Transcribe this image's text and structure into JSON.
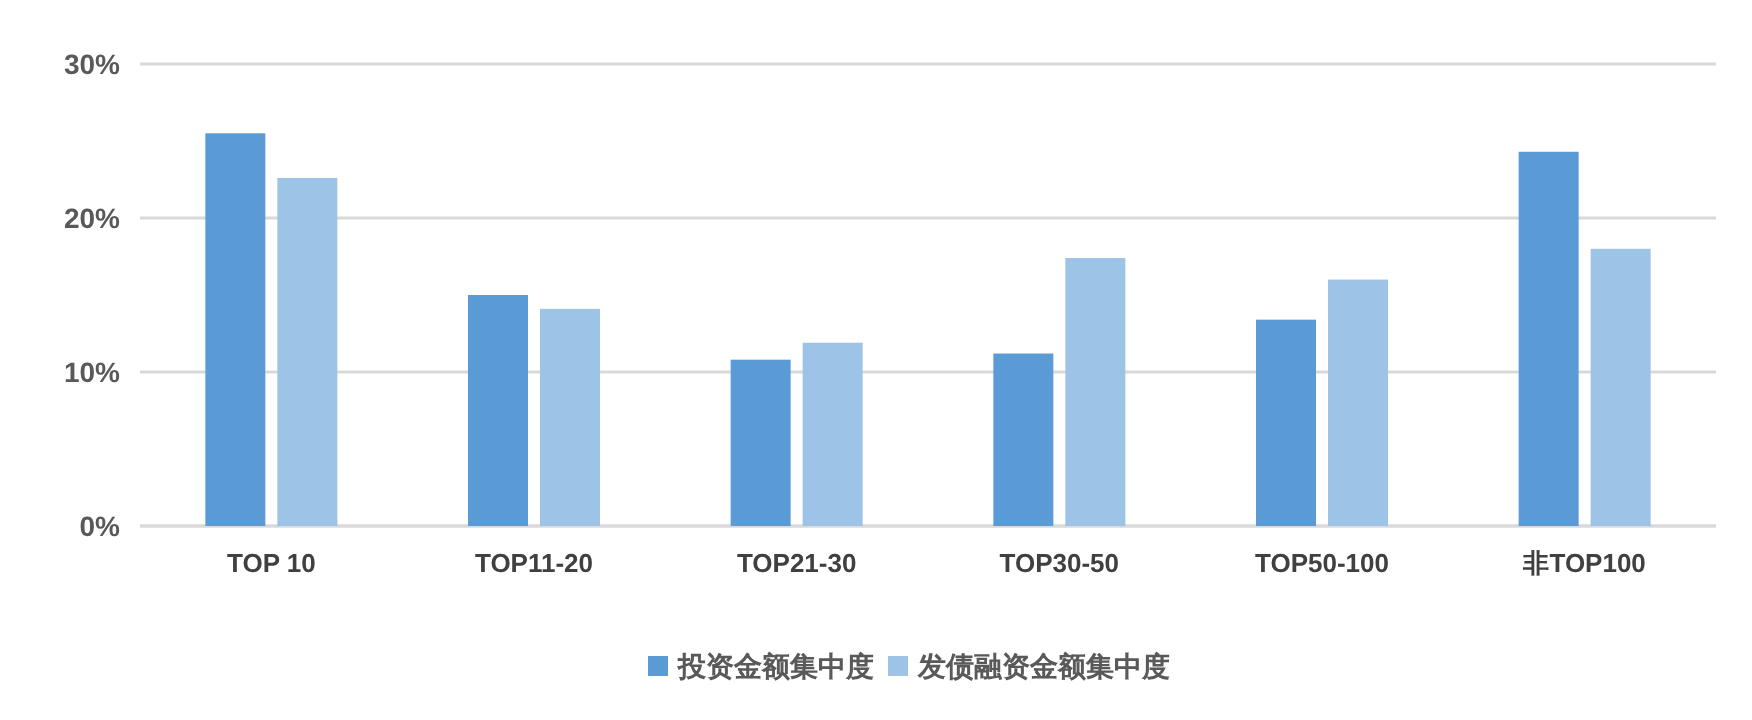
{
  "chart_data": {
    "type": "bar",
    "categories": [
      "TOP 10",
      "TOP11-20",
      "TOP21-30",
      "TOP30-50",
      "TOP50-100",
      "非TOP100"
    ],
    "series": [
      {
        "name": "投资金额集中度",
        "color": "#5b9bd5",
        "values": [
          25.5,
          15.0,
          10.8,
          11.2,
          13.4,
          24.3
        ]
      },
      {
        "name": "发债融资金额集中度",
        "color": "#9dc3e6",
        "values": [
          22.6,
          14.1,
          11.9,
          17.4,
          16.0,
          18.0
        ]
      }
    ],
    "ylim": [
      0,
      30
    ],
    "yticks": [
      {
        "value": 0,
        "label": "0%"
      },
      {
        "value": 10,
        "label": "10%"
      },
      {
        "value": 20,
        "label": "20%"
      },
      {
        "value": 30,
        "label": "30%"
      }
    ],
    "grid": "y",
    "legend": "bottom"
  }
}
